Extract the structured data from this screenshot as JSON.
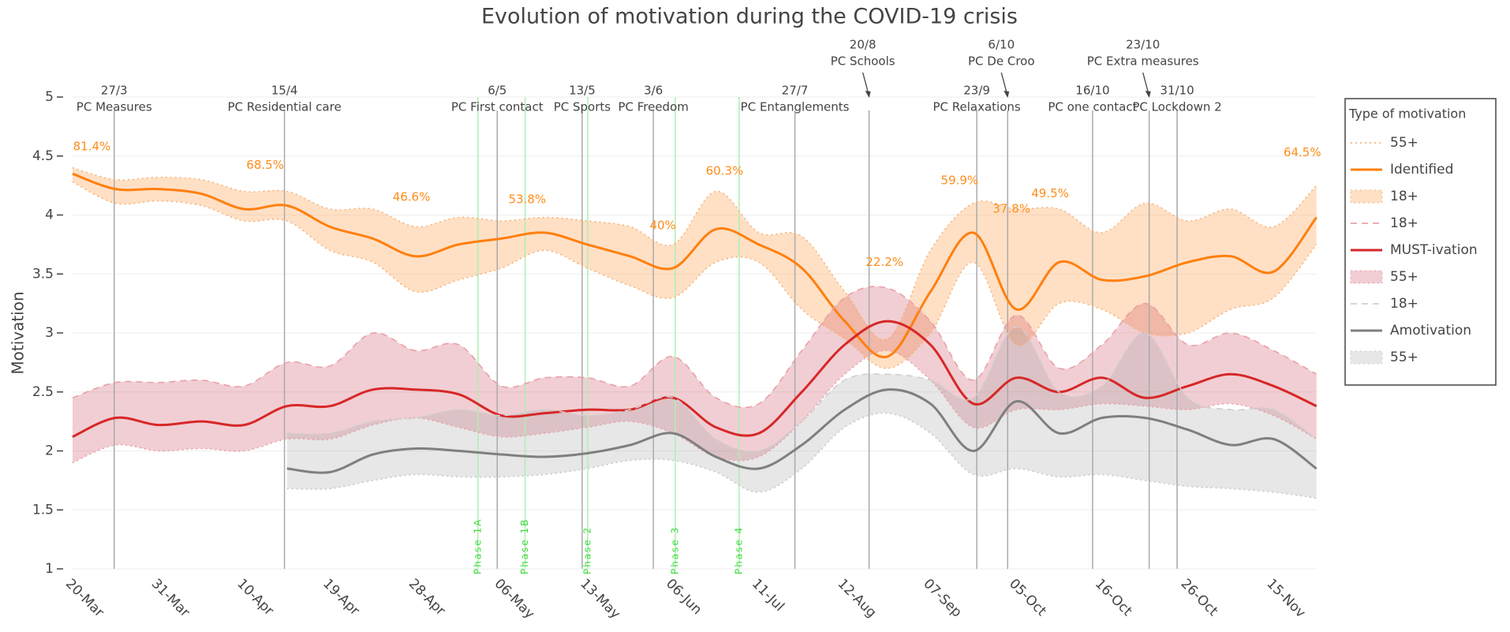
{
  "chart_data": {
    "type": "line",
    "title": "Evolution of motivation during the COVID-19 crisis",
    "y_label": "Motivation",
    "legend_title": "Type of motivation",
    "categories": [
      "20-Mar",
      null,
      "31-Mar",
      null,
      "10-Apr",
      null,
      "19-Apr",
      null,
      "28-Apr",
      null,
      "06-May",
      null,
      "13-May",
      null,
      "06-Jun",
      null,
      "11-Jul",
      null,
      "12-Aug",
      null,
      "07-Sep",
      null,
      "05-Oct",
      null,
      "16-Oct",
      null,
      "26-Oct",
      null,
      "15-Nov",
      null
    ],
    "ylim": [
      1,
      5
    ],
    "yticks": [
      1,
      1.5,
      2,
      2.5,
      3,
      3.5,
      4,
      4.5,
      5
    ],
    "grid": true,
    "series": [
      {
        "name": "55+",
        "color": "#f5b27a",
        "dash": "dot",
        "values": [
          4.4,
          4.3,
          4.32,
          4.3,
          4.2,
          4.2,
          4.05,
          4.05,
          3.9,
          3.98,
          3.95,
          3.98,
          3.95,
          3.9,
          3.75,
          4.2,
          3.85,
          3.82,
          3.35,
          2.95,
          3.7,
          4.1,
          4.05,
          4.05,
          3.85,
          4.1,
          3.95,
          4.05,
          3.9,
          4.25
        ]
      },
      {
        "name": "Identified",
        "color": "#ff7f0e",
        "dash": "solid",
        "values": [
          4.35,
          4.22,
          4.22,
          4.18,
          4.05,
          4.08,
          3.9,
          3.8,
          3.65,
          3.75,
          3.8,
          3.85,
          3.75,
          3.65,
          3.55,
          3.88,
          3.75,
          3.55,
          3.1,
          2.8,
          3.35,
          3.85,
          3.2,
          3.6,
          3.45,
          3.48,
          3.6,
          3.65,
          3.52,
          3.98
        ]
      },
      {
        "name": "18+",
        "color": "#f5b27a",
        "dash": "dot",
        "fill": "rgba(255,165,90,0.35)",
        "values": [
          4.28,
          4.1,
          4.12,
          4.08,
          3.95,
          3.95,
          3.7,
          3.6,
          3.35,
          3.45,
          3.55,
          3.7,
          3.55,
          3.4,
          3.3,
          3.6,
          3.6,
          3.2,
          2.95,
          2.7,
          3.0,
          3.6,
          2.9,
          3.25,
          3.2,
          3.0,
          3.0,
          3.2,
          3.3,
          3.75
        ]
      },
      {
        "name": "18+",
        "color": "#e8a0a8",
        "dash": "dash",
        "values": [
          2.45,
          2.58,
          2.58,
          2.6,
          2.55,
          2.75,
          2.72,
          3.0,
          2.85,
          2.9,
          2.55,
          2.62,
          2.62,
          2.55,
          2.8,
          2.45,
          2.4,
          2.85,
          3.3,
          3.38,
          3.1,
          2.6,
          3.15,
          2.7,
          2.9,
          3.25,
          2.9,
          3.0,
          2.85,
          2.65
        ]
      },
      {
        "name": "MUST-ivation",
        "color": "#d62728",
        "dash": "solid",
        "values": [
          2.12,
          2.28,
          2.22,
          2.25,
          2.22,
          2.38,
          2.38,
          2.52,
          2.52,
          2.48,
          2.3,
          2.32,
          2.35,
          2.35,
          2.45,
          2.2,
          2.15,
          2.5,
          2.9,
          3.1,
          2.9,
          2.4,
          2.62,
          2.5,
          2.62,
          2.45,
          2.55,
          2.65,
          2.55,
          2.38
        ]
      },
      {
        "name": "55+",
        "color": "#e8a0a8",
        "dash": "dot",
        "fill": "rgba(200,60,80,0.25)",
        "values": [
          1.9,
          2.05,
          2.0,
          2.02,
          2.0,
          2.1,
          2.1,
          2.22,
          2.28,
          2.2,
          2.12,
          2.15,
          2.2,
          2.25,
          2.15,
          1.95,
          1.95,
          2.25,
          2.65,
          2.85,
          2.6,
          2.2,
          2.35,
          2.35,
          2.4,
          2.38,
          2.35,
          2.4,
          2.3,
          2.1
        ]
      },
      {
        "name": "18+",
        "color": "#cfcfcf",
        "dash": "dash",
        "values": [
          null,
          null,
          null,
          null,
          null,
          2.15,
          2.15,
          2.25,
          2.28,
          2.35,
          2.3,
          2.35,
          2.3,
          2.35,
          2.45,
          2.1,
          2.0,
          2.25,
          2.6,
          2.65,
          2.6,
          2.45,
          3.05,
          2.5,
          2.55,
          3.0,
          2.45,
          2.35,
          2.35,
          2.1
        ]
      },
      {
        "name": "Amotivation",
        "color": "#7f7f7f",
        "dash": "solid",
        "values": [
          null,
          null,
          null,
          null,
          null,
          1.85,
          1.82,
          1.97,
          2.02,
          2.0,
          1.97,
          1.95,
          1.98,
          2.05,
          2.15,
          1.95,
          1.85,
          2.05,
          2.35,
          2.52,
          2.4,
          2.0,
          2.42,
          2.15,
          2.28,
          2.28,
          2.18,
          2.05,
          2.1,
          1.85
        ]
      },
      {
        "name": "55+",
        "color": "#c8c8c8",
        "dash": "dot",
        "fill": "rgba(160,160,160,0.25)",
        "values": [
          null,
          null,
          null,
          null,
          null,
          1.68,
          1.68,
          1.75,
          1.8,
          1.78,
          1.78,
          1.8,
          1.85,
          1.92,
          1.92,
          1.82,
          1.65,
          1.85,
          2.2,
          2.32,
          2.15,
          1.8,
          1.85,
          1.78,
          1.8,
          1.75,
          1.7,
          1.68,
          1.65,
          1.6
        ]
      }
    ],
    "annotations": [
      {
        "text": "81.4%",
        "x": 0.45,
        "y": 4.58
      },
      {
        "text": "68.5%",
        "x": 4.49,
        "y": 4.42
      },
      {
        "text": "46.6%",
        "x": 7.9,
        "y": 4.15
      },
      {
        "text": "53.8%",
        "x": 10.6,
        "y": 4.13
      },
      {
        "text": "40%",
        "x": 13.76,
        "y": 3.91
      },
      {
        "text": "60.3%",
        "x": 15.2,
        "y": 4.37
      },
      {
        "text": "22.2%",
        "x": 18.93,
        "y": 3.6
      },
      {
        "text": "59.9%",
        "x": 20.68,
        "y": 4.29
      },
      {
        "text": "37.8%",
        "x": 21.89,
        "y": 4.05
      },
      {
        "text": "49.5%",
        "x": 22.79,
        "y": 4.18
      },
      {
        "text": "64.5%",
        "x": 28.67,
        "y": 4.53
      }
    ],
    "events": [
      {
        "date": "27/3",
        "label": "PC Measures",
        "x": 0.97,
        "arrow": false
      },
      {
        "date": "15/4",
        "label": "PC Residential care",
        "x": 4.94,
        "arrow": false
      },
      {
        "date": "6/5",
        "label": "PC First contact",
        "x": 9.9,
        "arrow": false
      },
      {
        "date": "13/5",
        "label": "PC Sports",
        "x": 11.88,
        "arrow": false
      },
      {
        "date": "3/6",
        "label": "PC Freedom",
        "x": 13.54,
        "arrow": false
      },
      {
        "date": "27/7",
        "label": "PC Entanglements",
        "x": 16.84,
        "arrow": false
      },
      {
        "date": "20/8",
        "label": "PC Schools",
        "x": 18.57,
        "arrow": true
      },
      {
        "date": "23/9",
        "label": "PC Relaxations",
        "x": 21.08,
        "arrow": false
      },
      {
        "date": "6/10",
        "label": "PC De Croo",
        "x": 21.8,
        "arrow": true
      },
      {
        "date": "16/10",
        "label": "PC one contact",
        "x": 23.78,
        "arrow": false
      },
      {
        "date": "23/10",
        "label": "PC Extra measures",
        "x": 25.1,
        "arrow": true
      },
      {
        "date": "31/10",
        "label": "PC Lockdown 2",
        "x": 25.75,
        "arrow": false
      }
    ],
    "phases": [
      {
        "label": "Phase 1A",
        "x": 9.45
      },
      {
        "label": "Phase 1B",
        "x": 10.55
      },
      {
        "label": "Phase 2",
        "x": 12.01
      },
      {
        "label": "Phase 3",
        "x": 14.05
      },
      {
        "label": "Phase 4",
        "x": 15.54
      }
    ]
  }
}
